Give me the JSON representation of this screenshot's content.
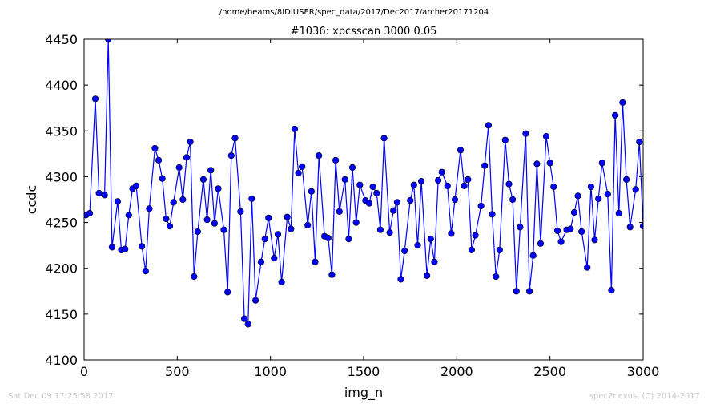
{
  "header": {
    "path": "/home/beams/8IDIUSER/spec_data/2017/Dec2017/archer20171204"
  },
  "footer": {
    "timestamp": "Sat Dec 09 17:25:58 2017",
    "credit": "spec2nexus, (C) 2014-2017"
  },
  "chart_data": {
    "type": "line",
    "title": "#1036: xpcsscan 3000 0.05",
    "xlabel": "img_n",
    "ylabel": "ccdc",
    "xlim": [
      0,
      3000
    ],
    "ylim": [
      4100,
      4450
    ],
    "xticks": [
      0,
      500,
      1000,
      1500,
      2000,
      2500,
      3000
    ],
    "yticks": [
      4100,
      4150,
      4200,
      4250,
      4300,
      4350,
      4400,
      4450
    ],
    "grid": false,
    "legend": "none",
    "line_color": "#0000ff",
    "marker_color": "#0000ff",
    "series": [
      {
        "x": [
          10,
          30,
          60,
          80,
          110,
          130,
          150,
          180,
          200,
          220,
          240,
          260,
          280,
          310,
          330,
          350,
          380,
          400,
          420,
          440,
          460,
          480,
          510,
          530,
          550,
          570,
          590,
          610,
          640,
          660,
          680,
          700,
          720,
          750,
          770,
          790,
          810,
          840,
          860,
          880,
          900,
          920,
          950,
          970,
          990,
          1020,
          1040,
          1060,
          1090,
          1110,
          1130,
          1150,
          1170,
          1200,
          1220,
          1240,
          1260,
          1290,
          1310,
          1330,
          1350,
          1370,
          1400,
          1420,
          1440,
          1460,
          1480,
          1510,
          1530,
          1550,
          1570,
          1590,
          1610,
          1640,
          1660,
          1680,
          1700,
          1720,
          1750,
          1770,
          1790,
          1810,
          1840,
          1860,
          1880,
          1900,
          1920,
          1950,
          1970,
          1990,
          2020,
          2040,
          2060,
          2080,
          2100,
          2130,
          2150,
          2170,
          2190,
          2210,
          2230,
          2260,
          2280,
          2300,
          2320,
          2340,
          2370,
          2390,
          2410,
          2430,
          2450,
          2480,
          2500,
          2520,
          2540,
          2560,
          2590,
          2610,
          2630,
          2650,
          2670,
          2700,
          2720,
          2740,
          2760,
          2780,
          2810,
          2830,
          2850,
          2870,
          2890,
          2910,
          2930,
          2960,
          2980,
          3000
        ],
        "y": [
          4258,
          4260,
          4385,
          4282,
          4280,
          4450,
          4223,
          4273,
          4220,
          4221,
          4258,
          4287,
          4290,
          4224,
          4197,
          4265,
          4331,
          4318,
          4298,
          4254,
          4246,
          4272,
          4310,
          4275,
          4321,
          4338,
          4191,
          4240,
          4297,
          4253,
          4307,
          4249,
          4287,
          4242,
          4174,
          4323,
          4342,
          4262,
          4145,
          4139,
          4276,
          4165,
          4207,
          4232,
          4255,
          4211,
          4237,
          4185,
          4256,
          4243,
          4352,
          4304,
          4311,
          4247,
          4284,
          4207,
          4323,
          4235,
          4233,
          4193,
          4318,
          4262,
          4297,
          4232,
          4310,
          4250,
          4291,
          4274,
          4271,
          4289,
          4282,
          4242,
          4342,
          4239,
          4263,
          4272,
          4188,
          4219,
          4274,
          4291,
          4225,
          4295,
          4192,
          4232,
          4207,
          4296,
          4305,
          4290,
          4238,
          4275,
          4329,
          4290,
          4297,
          4220,
          4236,
          4268,
          4312,
          4356,
          4259,
          4191,
          4220,
          4340,
          4292,
          4275,
          4175,
          4245,
          4347,
          4175,
          4214,
          4314,
          4227,
          4344,
          4315,
          4289,
          4241,
          4229,
          4242,
          4243,
          4261,
          4279,
          4240,
          4201,
          4289,
          4231,
          4276,
          4315,
          4281,
          4176,
          4367,
          4260,
          4381,
          4297,
          4245,
          4286,
          4338,
          4246
        ]
      }
    ]
  }
}
